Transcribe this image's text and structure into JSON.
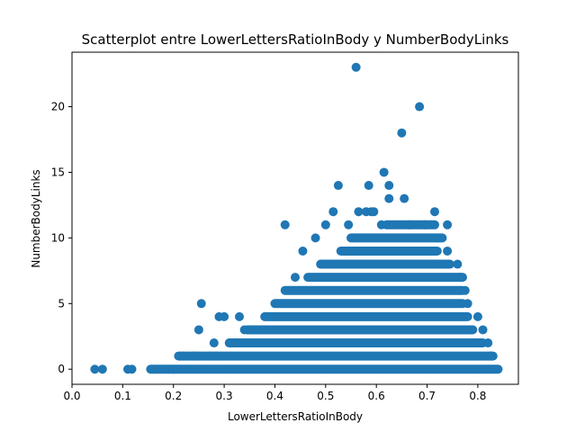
{
  "chart_data": {
    "type": "scatter",
    "title": "Scatterplot entre LowerLettersRatioInBody y NumberBodyLinks",
    "xlabel": "LowerLettersRatioInBody",
    "ylabel": "NumberBodyLinks",
    "xlim": [
      0.0,
      0.88
    ],
    "ylim": [
      -1.15,
      24.15
    ],
    "xticks": [
      "0.0",
      "0.1",
      "0.2",
      "0.3",
      "0.4",
      "0.5",
      "0.6",
      "0.7",
      "0.8"
    ],
    "yticks": [
      "0",
      "5",
      "10",
      "15",
      "20"
    ],
    "grid": false,
    "marker_color": "#1f77b4",
    "series": [
      {
        "bands": [
          {
            "y": 0,
            "x_min": 0.155,
            "x_max": 0.84
          },
          {
            "y": 1,
            "x_min": 0.21,
            "x_max": 0.83
          },
          {
            "y": 2,
            "x_min": 0.31,
            "x_max": 0.81
          },
          {
            "y": 3,
            "x_min": 0.345,
            "x_max": 0.79
          },
          {
            "y": 4,
            "x_min": 0.38,
            "x_max": 0.78
          },
          {
            "y": 5,
            "x_min": 0.4,
            "x_max": 0.77
          },
          {
            "y": 6,
            "x_min": 0.42,
            "x_max": 0.77
          },
          {
            "y": 7,
            "x_min": 0.465,
            "x_max": 0.77
          },
          {
            "y": 8,
            "x_min": 0.49,
            "x_max": 0.745
          },
          {
            "y": 9,
            "x_min": 0.53,
            "x_max": 0.72
          },
          {
            "y": 10,
            "x_min": 0.55,
            "x_max": 0.73
          },
          {
            "y": 11,
            "x_min": 0.62,
            "x_max": 0.715
          }
        ],
        "points": [
          {
            "x": 0.045,
            "y": 0
          },
          {
            "x": 0.06,
            "y": 0
          },
          {
            "x": 0.11,
            "y": 0
          },
          {
            "x": 0.118,
            "y": 0
          },
          {
            "x": 0.22,
            "y": 1
          },
          {
            "x": 0.24,
            "y": 1
          },
          {
            "x": 0.2,
            "y": 0
          },
          {
            "x": 0.25,
            "y": 3
          },
          {
            "x": 0.255,
            "y": 5
          },
          {
            "x": 0.27,
            "y": 1
          },
          {
            "x": 0.28,
            "y": 2
          },
          {
            "x": 0.285,
            "y": 1
          },
          {
            "x": 0.29,
            "y": 4
          },
          {
            "x": 0.3,
            "y": 4
          },
          {
            "x": 0.33,
            "y": 4
          },
          {
            "x": 0.34,
            "y": 3
          },
          {
            "x": 0.42,
            "y": 11
          },
          {
            "x": 0.44,
            "y": 7
          },
          {
            "x": 0.455,
            "y": 9
          },
          {
            "x": 0.48,
            "y": 10
          },
          {
            "x": 0.5,
            "y": 11
          },
          {
            "x": 0.515,
            "y": 12
          },
          {
            "x": 0.525,
            "y": 14
          },
          {
            "x": 0.535,
            "y": 9
          },
          {
            "x": 0.545,
            "y": 11
          },
          {
            "x": 0.56,
            "y": 23
          },
          {
            "x": 0.585,
            "y": 14
          },
          {
            "x": 0.565,
            "y": 12
          },
          {
            "x": 0.58,
            "y": 12
          },
          {
            "x": 0.59,
            "y": 12
          },
          {
            "x": 0.595,
            "y": 12
          },
          {
            "x": 0.61,
            "y": 11
          },
          {
            "x": 0.615,
            "y": 15
          },
          {
            "x": 0.625,
            "y": 14
          },
          {
            "x": 0.625,
            "y": 13
          },
          {
            "x": 0.65,
            "y": 18
          },
          {
            "x": 0.655,
            "y": 13
          },
          {
            "x": 0.665,
            "y": 11
          },
          {
            "x": 0.685,
            "y": 20
          },
          {
            "x": 0.695,
            "y": 11
          },
          {
            "x": 0.715,
            "y": 12
          },
          {
            "x": 0.74,
            "y": 11
          },
          {
            "x": 0.72,
            "y": 10
          },
          {
            "x": 0.74,
            "y": 9
          },
          {
            "x": 0.76,
            "y": 8
          },
          {
            "x": 0.765,
            "y": 7
          },
          {
            "x": 0.775,
            "y": 6
          },
          {
            "x": 0.78,
            "y": 5
          },
          {
            "x": 0.8,
            "y": 4
          },
          {
            "x": 0.81,
            "y": 3
          },
          {
            "x": 0.82,
            "y": 2
          },
          {
            "x": 0.825,
            "y": 1
          }
        ]
      }
    ]
  }
}
